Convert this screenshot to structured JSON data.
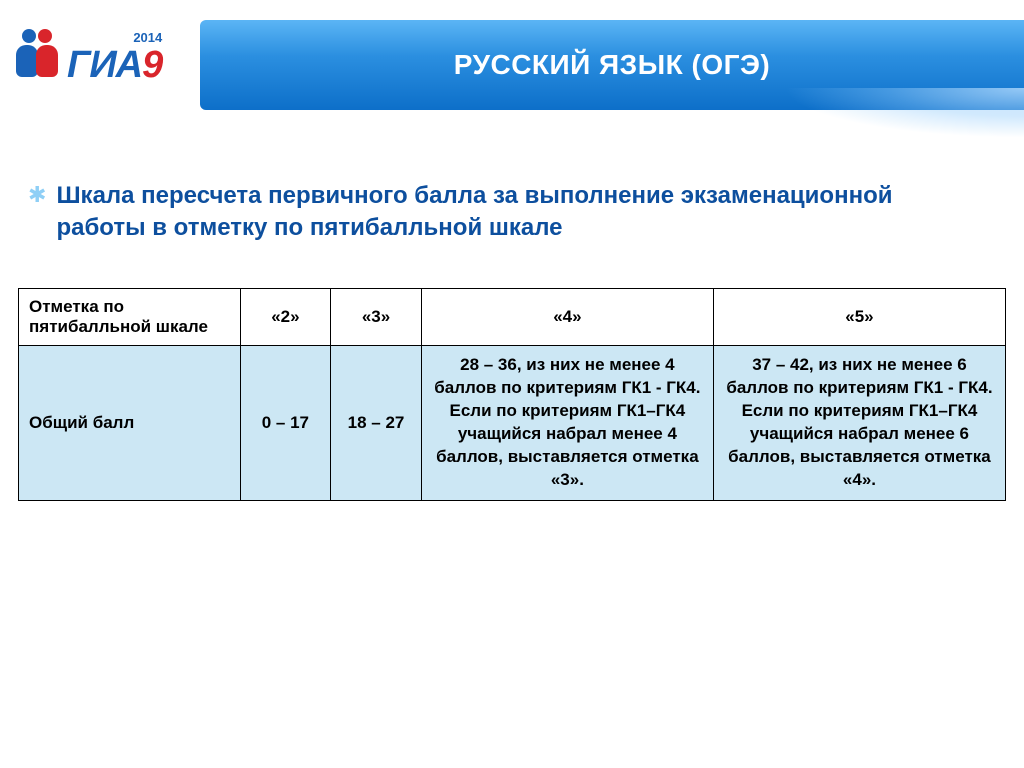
{
  "logo": {
    "year": "2014",
    "text_main": "ГИА",
    "text_suffix": "9"
  },
  "header": {
    "title": "РУССКИЙ ЯЗЫК (ОГЭ)"
  },
  "subtitle": "Шкала пересчета первичного балла за выполнение экзаменационной работы в отметку по пятибалльной шкале",
  "table": {
    "head_label": "Отметка по пятибалльной шкале",
    "grades": [
      "«2»",
      "«3»",
      "«4»",
      "«5»"
    ],
    "row_label": "Общий балл",
    "cells": [
      "0 – 17",
      "18 – 27",
      "28 – 36,\nиз них не менее 4 баллов по критериям ГК1 - ГК4. Если по критериям ГК1–ГК4 учащийся набрал менее 4 баллов, выставляется отметка «3».",
      "37 – 42,\nиз них не менее 6 баллов по критериям ГК1 - ГК4. Если по критериям ГК1–ГК4 учащийся набрал менее 6 баллов, выставляется отметка «4»."
    ]
  },
  "colors": {
    "header_gradient_top": "#5bb5f5",
    "header_gradient_bottom": "#0d6fc9",
    "subtitle_color": "#0d4f9e",
    "table_body_bg": "#cce7f4",
    "logo_blue": "#1b63b8",
    "logo_red": "#d9252b"
  }
}
